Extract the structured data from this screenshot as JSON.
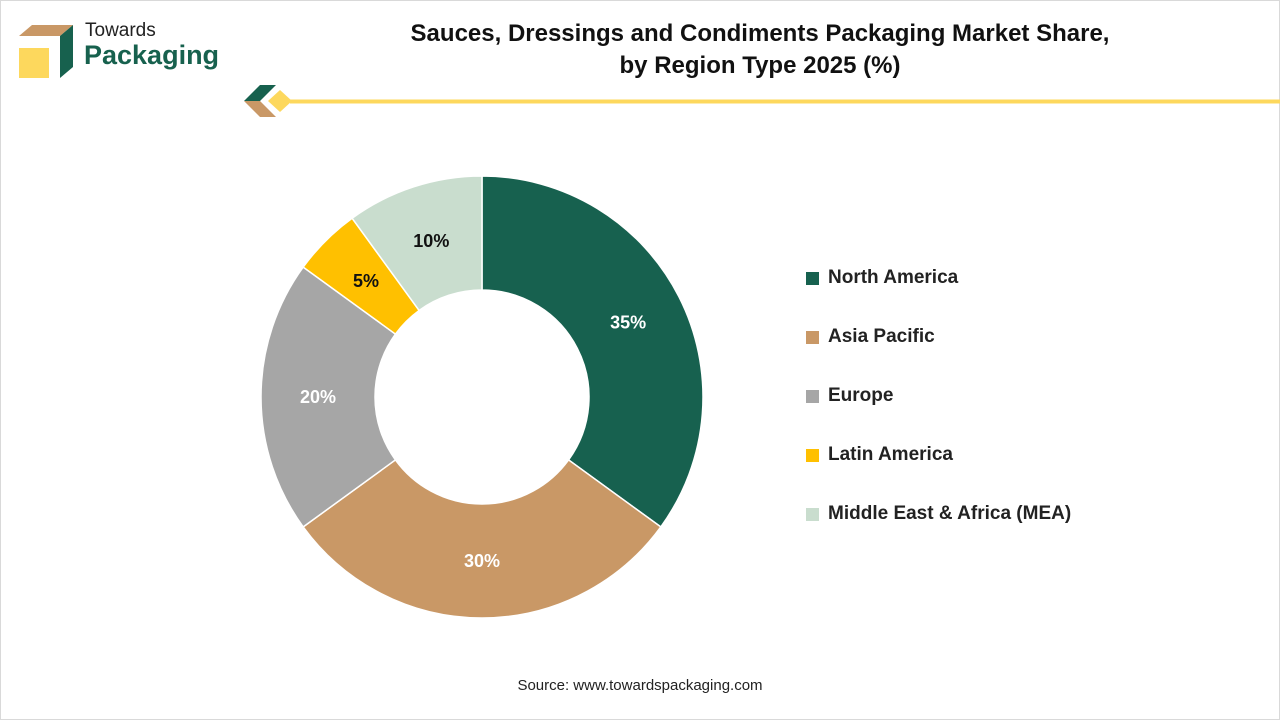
{
  "brand": {
    "line1": "Towards",
    "line2": "Packaging"
  },
  "title_line1": "Sauces, Dressings and Condiments Packaging Market Share,",
  "title_line2": "by Region Type 2025 (%)",
  "source": "Source: www.towardspackaging.com",
  "chart_data": {
    "type": "pie",
    "donut": true,
    "title": "Sauces, Dressings and Condiments Packaging Market Share, by Region Type 2025 (%)",
    "categories": [
      "North America",
      "Asia Pacific",
      "Europe",
      "Latin America",
      "Middle East & Africa (MEA)"
    ],
    "values": [
      35,
      30,
      20,
      5,
      10
    ],
    "labels": [
      "35%",
      "30%",
      "20%",
      "5%",
      "10%"
    ],
    "colors": [
      "#17614f",
      "#c99866",
      "#a6a6a6",
      "#ffc000",
      "#c9ddce"
    ],
    "label_colors": [
      "#ffffff",
      "#ffffff",
      "#ffffff",
      "#111111",
      "#111111"
    ],
    "legend_position": "right"
  }
}
